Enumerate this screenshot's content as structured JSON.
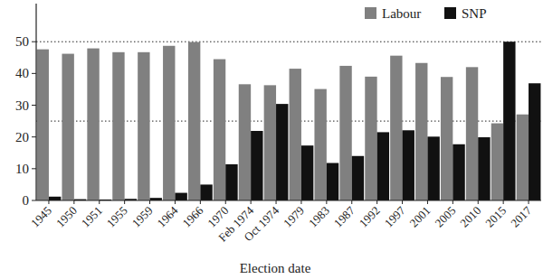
{
  "chart_data": {
    "type": "bar",
    "x_label": "Election date",
    "categories": [
      "1945",
      "1950",
      "1951",
      "1955",
      "1959",
      "1964",
      "1966",
      "1970",
      "Feb 1974",
      "Oct 1974",
      "1979",
      "1983",
      "1987",
      "1992",
      "1997",
      "2001",
      "2005",
      "2010",
      "2015",
      "2017"
    ],
    "series": [
      {
        "name": "Labour",
        "color": "#808080",
        "values": [
          47.6,
          46.2,
          47.9,
          46.7,
          46.7,
          48.7,
          49.9,
          44.5,
          36.6,
          36.3,
          41.5,
          35.1,
          42.4,
          39.0,
          45.6,
          43.3,
          38.9,
          42.0,
          24.3,
          27.1
        ]
      },
      {
        "name": "SNP",
        "color": "#111111",
        "values": [
          1.2,
          0.4,
          0.3,
          0.5,
          0.8,
          2.4,
          5.0,
          11.4,
          21.9,
          30.4,
          17.3,
          11.8,
          14.0,
          21.5,
          22.1,
          20.1,
          17.7,
          19.9,
          50.0,
          36.9
        ]
      }
    ],
    "ylim": [
      0,
      62
    ],
    "yticks": [
      0,
      10,
      20,
      30,
      40,
      50
    ],
    "reference_lines": [
      50,
      25
    ],
    "grid": false,
    "legend": "top-right"
  }
}
